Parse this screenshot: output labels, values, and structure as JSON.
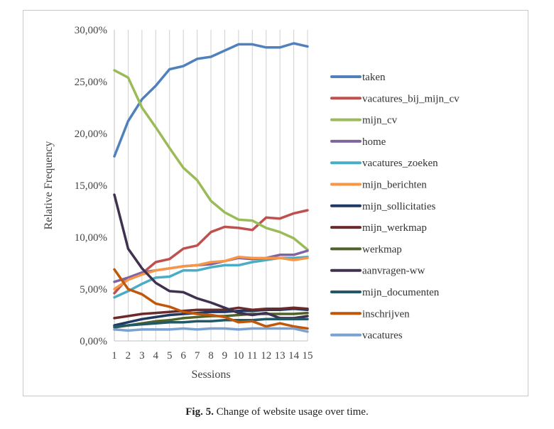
{
  "caption": {
    "label": "Fig. 5.",
    "text": " Change of website usage over time."
  },
  "chart_data": {
    "type": "line",
    "title": "",
    "xlabel": "Sessions",
    "ylabel": "Relative Frequency",
    "x": [
      1,
      2,
      3,
      4,
      5,
      6,
      7,
      8,
      9,
      10,
      11,
      12,
      13,
      14,
      15
    ],
    "ylim": [
      0,
      30
    ],
    "yticks": [
      0,
      5,
      10,
      15,
      20,
      25,
      30
    ],
    "ytick_labels": [
      "0,00%",
      "5,00%",
      "10,00%",
      "15,00%",
      "20,00%",
      "25,00%",
      "30,00%"
    ],
    "grid": "vertical",
    "legend_position": "right",
    "series": [
      {
        "name": "taken",
        "color": "#4f81bd",
        "values": [
          17.8,
          21.2,
          23.3,
          24.6,
          26.2,
          26.5,
          27.2,
          27.4,
          28.0,
          28.6,
          28.6,
          28.3,
          28.3,
          28.7,
          28.4
        ]
      },
      {
        "name": "vacatures_bij_mijn_cv",
        "color": "#c0504d",
        "values": [
          4.6,
          6.1,
          6.5,
          7.6,
          7.9,
          8.9,
          9.2,
          10.5,
          11.0,
          10.9,
          10.7,
          11.9,
          11.8,
          12.3,
          12.6
        ]
      },
      {
        "name": "mijn_cv",
        "color": "#9bbb59",
        "values": [
          26.1,
          25.4,
          22.5,
          20.6,
          18.6,
          16.7,
          15.5,
          13.5,
          12.4,
          11.7,
          11.6,
          10.9,
          10.5,
          9.9,
          8.8
        ]
      },
      {
        "name": "home",
        "color": "#8064a2",
        "values": [
          5.7,
          6.1,
          6.6,
          6.8,
          7.0,
          7.2,
          7.3,
          7.4,
          7.7,
          8.0,
          7.9,
          8.0,
          8.3,
          8.3,
          8.7
        ]
      },
      {
        "name": "vacatures_zoeken",
        "color": "#4bacc6",
        "values": [
          4.2,
          4.8,
          5.5,
          6.1,
          6.2,
          6.8,
          6.8,
          7.1,
          7.3,
          7.3,
          7.6,
          7.8,
          8.0,
          8.0,
          8.1
        ]
      },
      {
        "name": "mijn_berichten",
        "color": "#f79646",
        "values": [
          5.0,
          5.9,
          6.4,
          6.8,
          7.0,
          7.2,
          7.3,
          7.6,
          7.7,
          8.1,
          8.0,
          8.0,
          8.0,
          7.8,
          8.0
        ]
      },
      {
        "name": "mijn_sollicitaties",
        "color": "#1f3864",
        "values": [
          1.5,
          1.8,
          2.1,
          2.3,
          2.5,
          2.6,
          2.7,
          2.8,
          2.8,
          2.9,
          2.9,
          3.0,
          3.0,
          3.1,
          3.0
        ]
      },
      {
        "name": "mijn_werkmap",
        "color": "#6b2b2b",
        "values": [
          2.2,
          2.4,
          2.6,
          2.7,
          2.8,
          2.9,
          3.0,
          3.0,
          3.0,
          3.2,
          3.0,
          3.1,
          3.1,
          3.2,
          3.1
        ]
      },
      {
        "name": "werkmap",
        "color": "#4f6228",
        "values": [
          1.3,
          1.5,
          1.7,
          1.9,
          2.0,
          2.2,
          2.3,
          2.4,
          2.4,
          2.5,
          2.6,
          2.6,
          2.6,
          2.6,
          2.7
        ]
      },
      {
        "name": "aanvragen-ww",
        "color": "#403151",
        "values": [
          14.1,
          8.9,
          7.0,
          5.6,
          4.8,
          4.7,
          4.1,
          3.7,
          3.2,
          2.7,
          2.5,
          2.7,
          2.2,
          2.2,
          2.4
        ]
      },
      {
        "name": "mijn_documenten",
        "color": "#215967",
        "values": [
          1.4,
          1.5,
          1.6,
          1.7,
          1.8,
          1.8,
          1.9,
          1.9,
          2.0,
          2.0,
          2.0,
          2.1,
          2.1,
          2.1,
          2.1
        ]
      },
      {
        "name": "inschrijven",
        "color": "#c0570a",
        "values": [
          6.9,
          5.0,
          4.5,
          3.6,
          3.3,
          2.8,
          2.6,
          2.5,
          2.3,
          1.8,
          1.9,
          1.4,
          1.7,
          1.4,
          1.2
        ]
      },
      {
        "name": "vacatures",
        "color": "#7ba1d1",
        "values": [
          1.1,
          1.0,
          1.1,
          1.1,
          1.1,
          1.2,
          1.1,
          1.2,
          1.2,
          1.1,
          1.2,
          1.2,
          1.2,
          1.2,
          0.9
        ]
      }
    ]
  }
}
